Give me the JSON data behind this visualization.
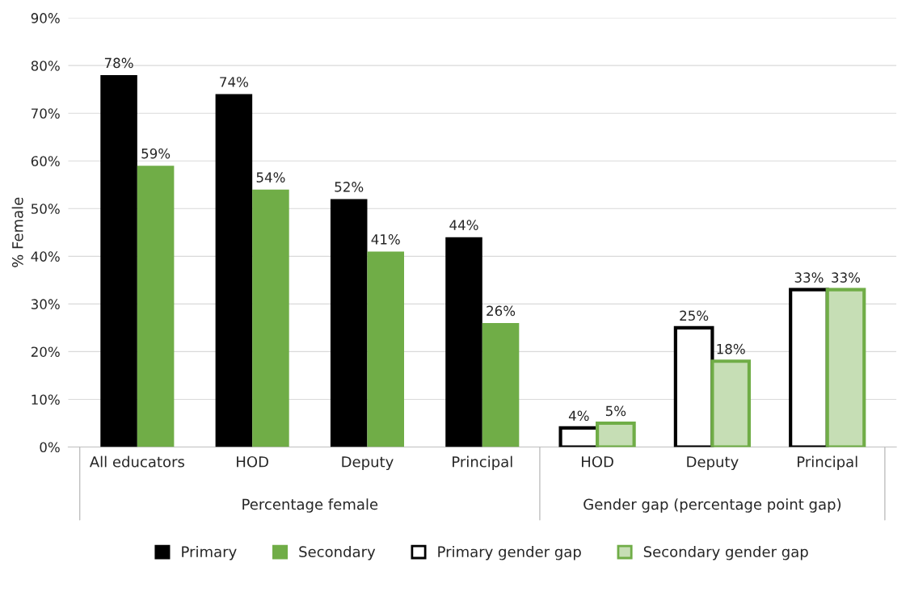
{
  "chart_data": {
    "type": "bar",
    "ylabel": "% Female",
    "categories": [
      "All educators",
      "HOD",
      "Deputy",
      "Principal",
      "HOD",
      "Deputy",
      "Principal"
    ],
    "annotations": [
      "Percentage female",
      "Gender gap (percentage point gap)"
    ],
    "series": [
      {
        "name": "Primary",
        "color": "#000000",
        "values": [
          78,
          74,
          52,
          44,
          null,
          null,
          null
        ],
        "value_labels": [
          "78%",
          "74%",
          "52%",
          "44%",
          null,
          null,
          null
        ]
      },
      {
        "name": "Secondary",
        "color": "#70ad47",
        "values": [
          59,
          54,
          41,
          26,
          null,
          null,
          null
        ],
        "value_labels": [
          "59%",
          "54%",
          "41%",
          "26%",
          null,
          null,
          null
        ]
      },
      {
        "name": "Primary gender gap",
        "color": "#000000",
        "values": [
          null,
          null,
          null,
          null,
          4,
          25,
          33
        ],
        "value_labels": [
          null,
          null,
          null,
          null,
          "4%",
          "25%",
          "33%"
        ]
      },
      {
        "name": "Secondary gender gap",
        "color": "#70ad47",
        "values": [
          null,
          null,
          null,
          null,
          5,
          18,
          33
        ],
        "value_labels": [
          null,
          null,
          null,
          null,
          "5%",
          "18%",
          "33%"
        ]
      }
    ],
    "ylim": [
      0,
      90
    ],
    "yticks": [
      {
        "value": 0,
        "label": "0%"
      },
      {
        "value": 10,
        "label": "10%"
      },
      {
        "value": 20,
        "label": "20%"
      },
      {
        "value": 30,
        "label": "30%"
      },
      {
        "value": 40,
        "label": "40%"
      },
      {
        "value": 50,
        "label": "50%"
      },
      {
        "value": 60,
        "label": "60%"
      },
      {
        "value": 70,
        "label": "70%"
      },
      {
        "value": 80,
        "label": "80%"
      },
      {
        "value": 90,
        "label": "90%"
      }
    ],
    "grid": "y",
    "legend": "bottom"
  }
}
